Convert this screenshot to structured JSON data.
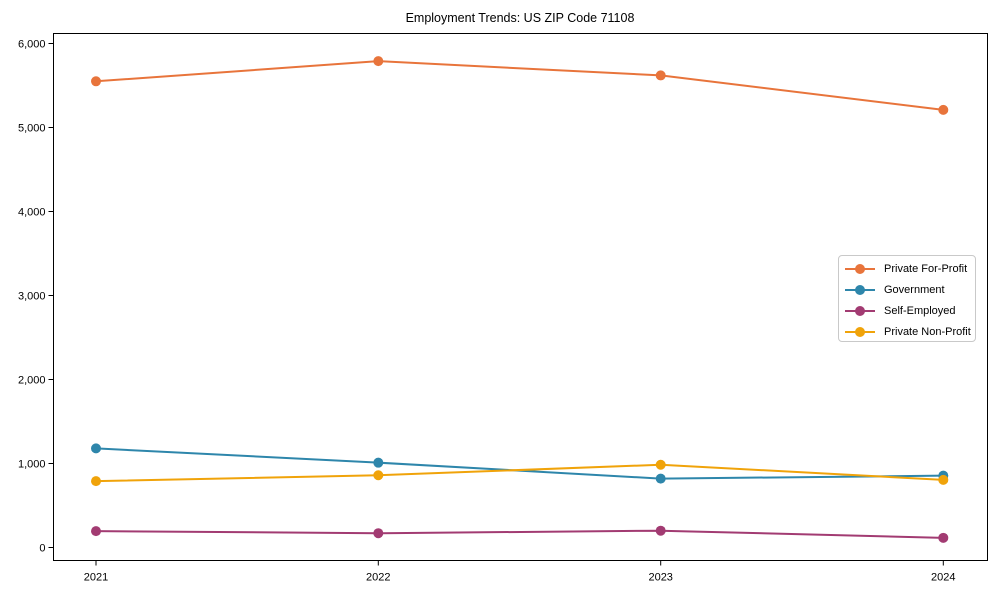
{
  "chart_data": {
    "type": "line",
    "title": "Employment Trends: US ZIP Code 71108",
    "x": [
      "2021",
      "2022",
      "2023",
      "2024"
    ],
    "series": [
      {
        "name": "Private For-Profit",
        "color": "#E8743B",
        "values": [
          5550,
          5790,
          5620,
          5210
        ]
      },
      {
        "name": "Government",
        "color": "#2E86AB",
        "values": [
          1180,
          1010,
          820,
          855
        ]
      },
      {
        "name": "Self-Employed",
        "color": "#A23B72",
        "values": [
          195,
          170,
          200,
          115
        ]
      },
      {
        "name": "Private Non-Profit",
        "color": "#F0A30A",
        "values": [
          790,
          860,
          985,
          805
        ]
      }
    ],
    "xlabel": "",
    "ylabel": "",
    "ylim": [
      0,
      6000
    ],
    "yticks": [
      0,
      1000,
      2000,
      3000,
      4000,
      5000,
      6000
    ],
    "ytick_labels": [
      "0",
      "1,000",
      "2,000",
      "3,000",
      "4,000",
      "5,000",
      "6,000"
    ],
    "grid": false,
    "marker": "circle",
    "legend": {
      "position": "center-right",
      "border_color": "#c9c9c9"
    },
    "spine_color": "#000000"
  }
}
